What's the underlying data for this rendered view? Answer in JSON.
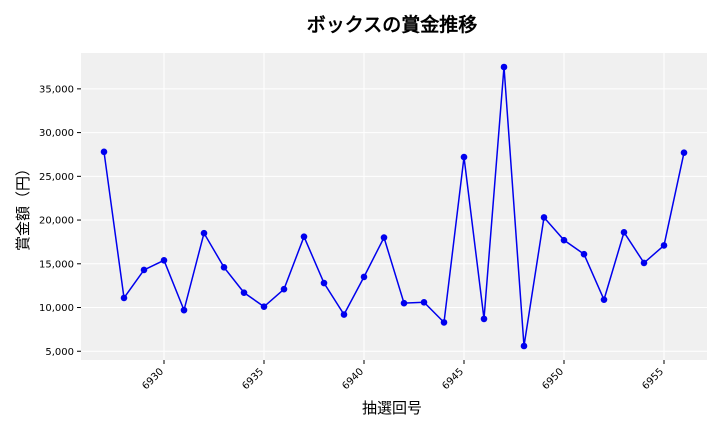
{
  "chart_data": {
    "type": "line",
    "title": "ボックスの賞金推移",
    "xlabel": "抽選回号",
    "ylabel": "賞金額（円）",
    "x": [
      6927,
      6928,
      6929,
      6930,
      6931,
      6932,
      6933,
      6934,
      6935,
      6936,
      6937,
      6938,
      6939,
      6940,
      6941,
      6942,
      6943,
      6944,
      6945,
      6946,
      6947,
      6948,
      6949,
      6950,
      6951,
      6952,
      6953,
      6954,
      6955,
      6956
    ],
    "series": [
      {
        "values": [
          27800,
          11100,
          14300,
          15400,
          9700,
          18500,
          14600,
          11700,
          10100,
          12100,
          18100,
          12800,
          9200,
          13500,
          18000,
          10500,
          10600,
          8300,
          27200,
          8700,
          37500,
          5600,
          20300,
          17700,
          16100,
          10900,
          18600,
          15100,
          17100,
          27700
        ],
        "color": "#0000ee"
      }
    ],
    "xlim": [
      6925.85,
      6957.15
    ],
    "ylim": [
      4000,
      39100
    ],
    "xticks": [
      "6930",
      "6935",
      "6940",
      "6945",
      "6950",
      "6955"
    ],
    "yticks": [
      "5,000",
      "10,000",
      "15,000",
      "20,000",
      "25,000",
      "30,000",
      "35,000"
    ],
    "grid": true,
    "background": "#f0f0f0"
  }
}
